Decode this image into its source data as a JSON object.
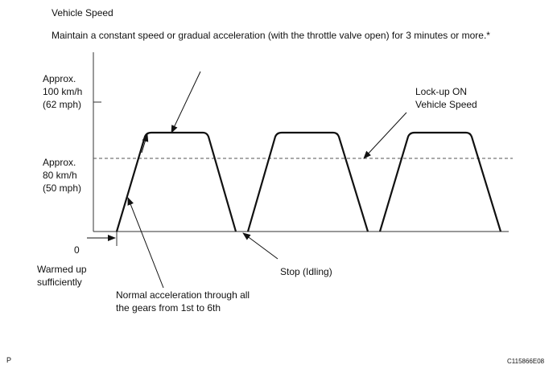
{
  "heading": "Vehicle Speed",
  "instruction": "Maintain a constant speed or gradual acceleration (with the throttle valve open) for 3 minutes or more.*",
  "y_labels": {
    "upper": [
      "Approx.",
      "100 km/h",
      "(62 mph)"
    ],
    "lower": [
      "Approx.",
      "80 km/h",
      "(50 mph)"
    ],
    "zero": "0"
  },
  "callouts": {
    "lockup": [
      "Lock-up ON",
      "Vehicle Speed"
    ],
    "warmed": [
      "Warmed up",
      "sufficiently"
    ],
    "normal_accel": [
      "Normal acceleration through all",
      "the gears from 1st to 6th"
    ],
    "stop": "Stop (Idling)"
  },
  "footer": {
    "left": "P",
    "code": "C115866E08"
  }
}
